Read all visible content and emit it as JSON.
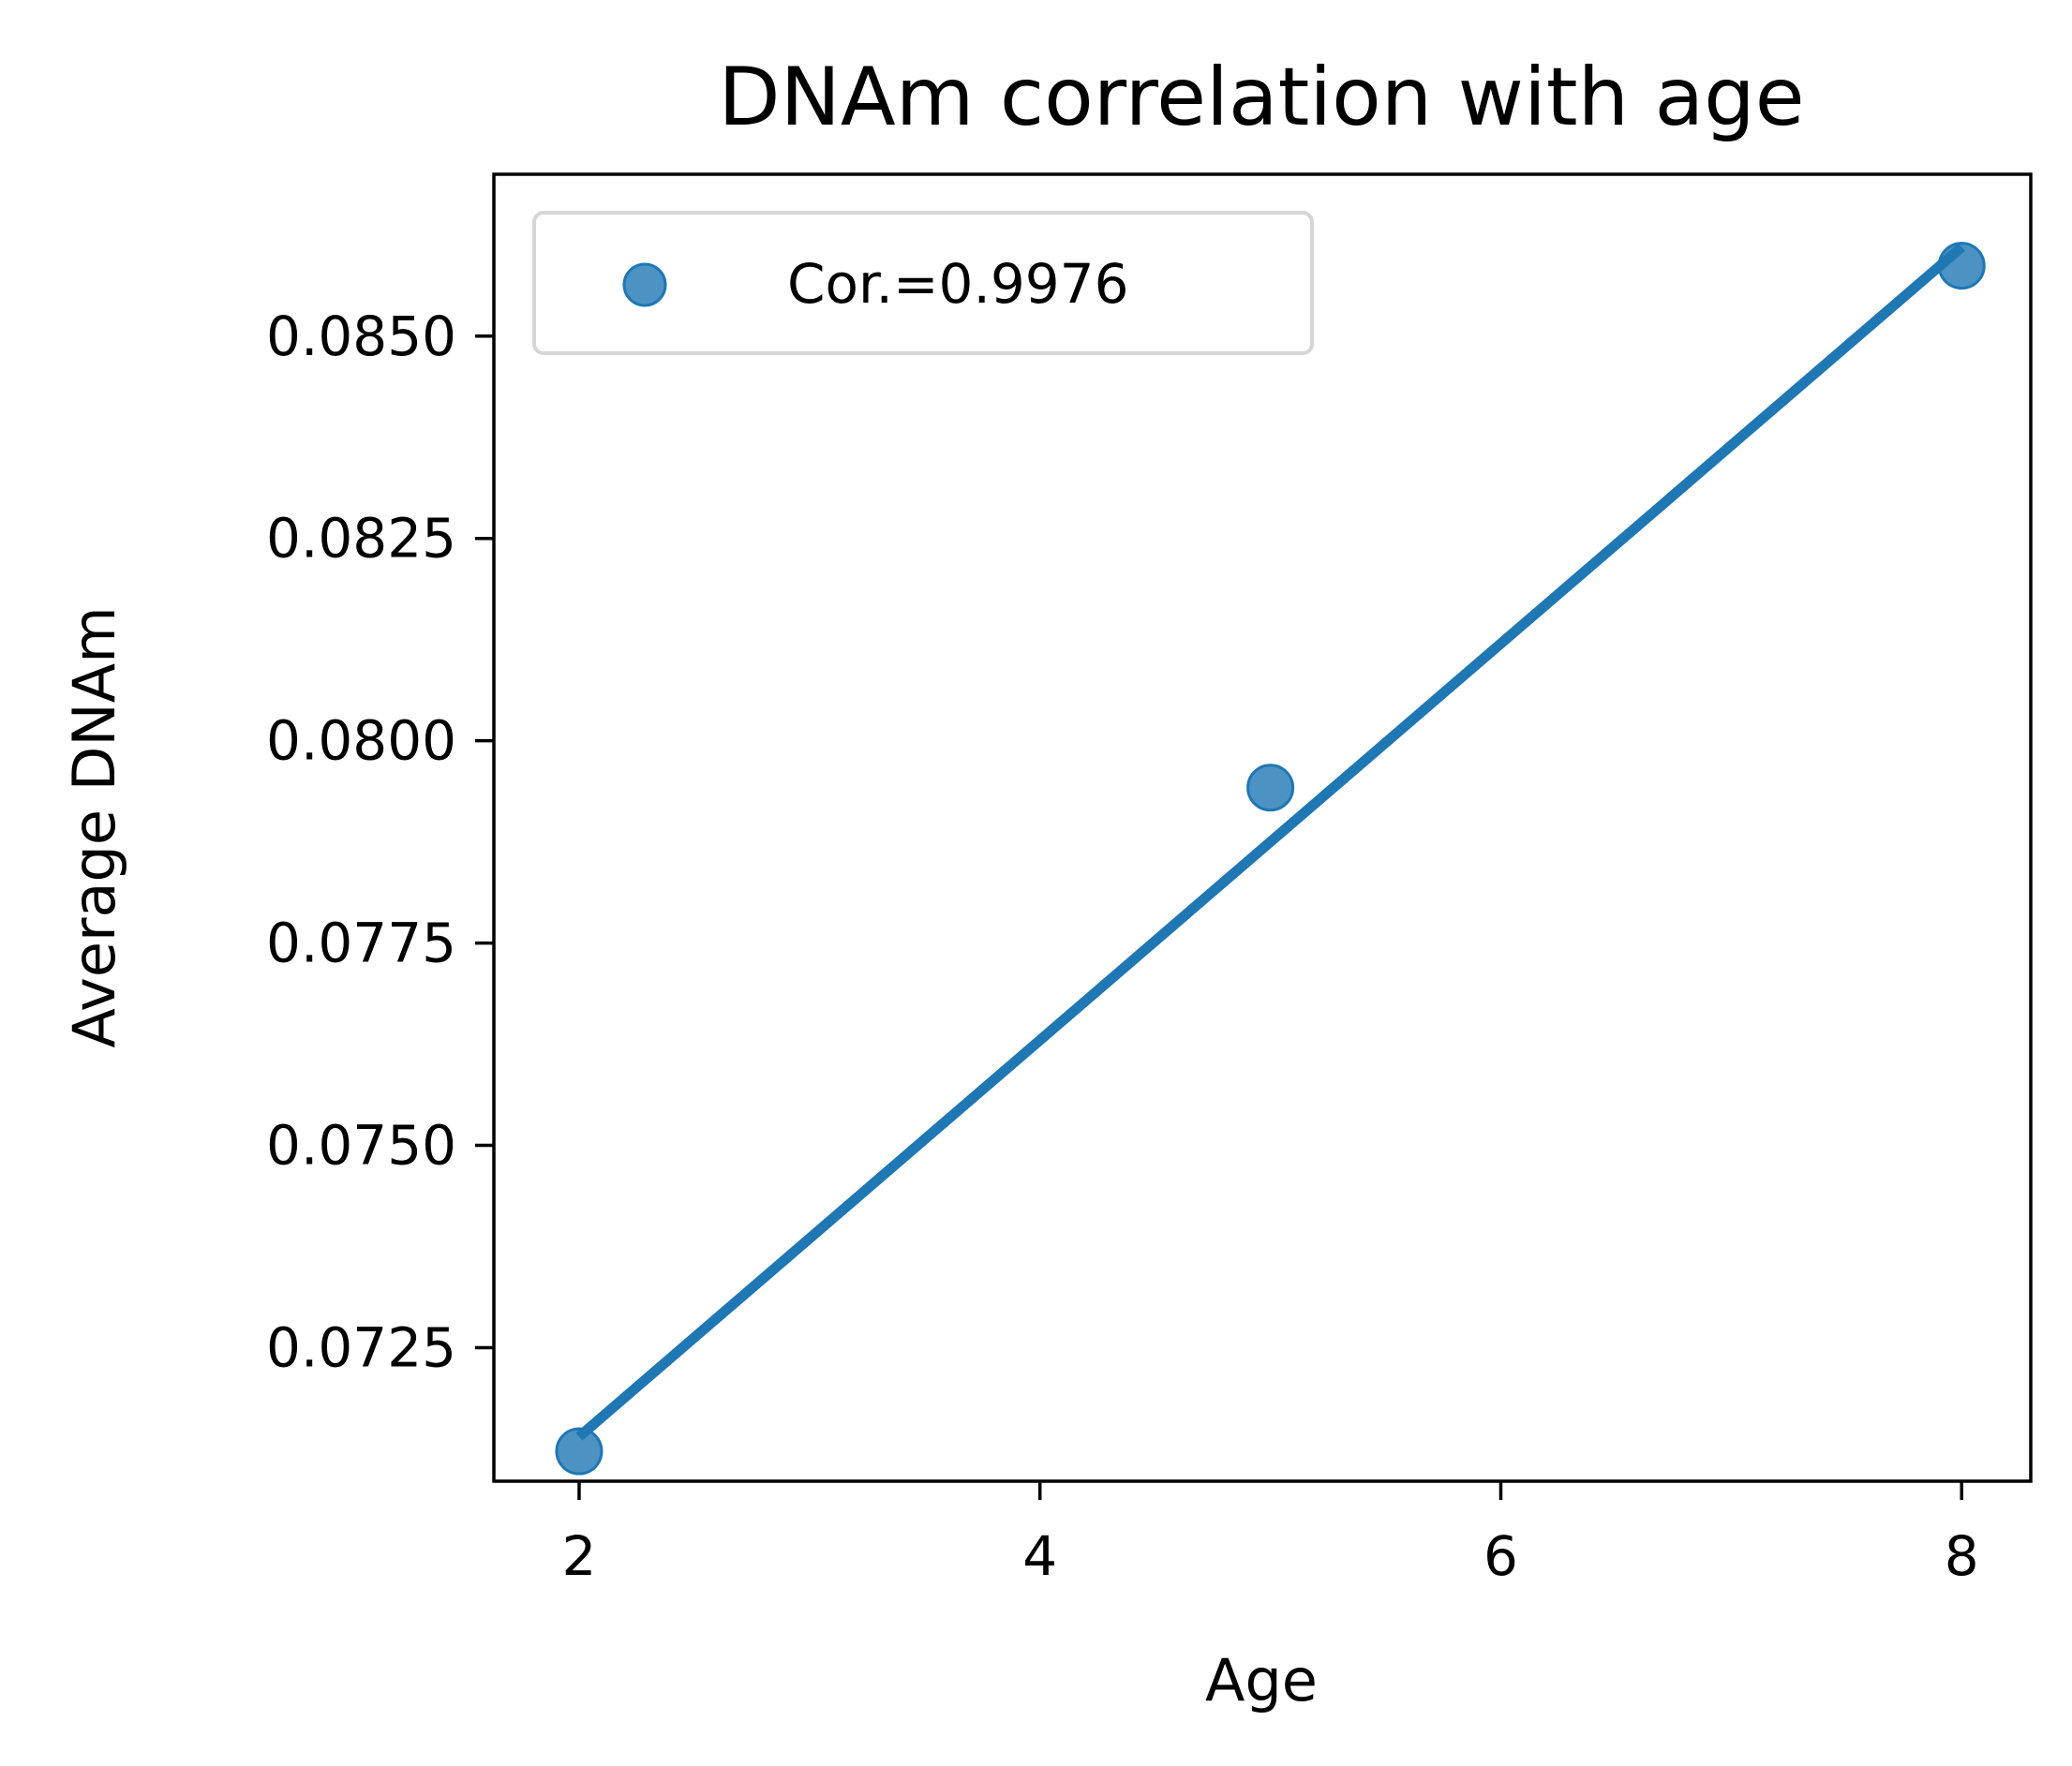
{
  "chart_data": {
    "type": "scatter",
    "title": "DNAm correlation with age",
    "xlabel": "Age",
    "ylabel": "Average DNAm",
    "xlim": [
      1.63,
      8.3
    ],
    "ylim": [
      0.07085,
      0.087
    ],
    "xticks": [
      2,
      4,
      6,
      8
    ],
    "xtick_labels": [
      "2",
      "4",
      "6",
      "8"
    ],
    "yticks": [
      0.0725,
      0.075,
      0.0775,
      0.08,
      0.0825,
      0.085
    ],
    "ytick_labels": [
      "0.0725",
      "0.0750",
      "0.0775",
      "0.0800",
      "0.0825",
      "0.0850"
    ],
    "grid": false,
    "legend_position": "upper-left",
    "series": [
      {
        "name": "Cor.=0.9976",
        "marker": "circle",
        "color": "#1f77b4",
        "x": [
          2,
          5,
          8
        ],
        "y": [
          0.07122,
          0.07942,
          0.08587
        ]
      }
    ],
    "fit_line": {
      "color": "#1f77b4",
      "x": [
        2,
        8
      ],
      "y": [
        0.0714,
        0.0861
      ]
    }
  }
}
